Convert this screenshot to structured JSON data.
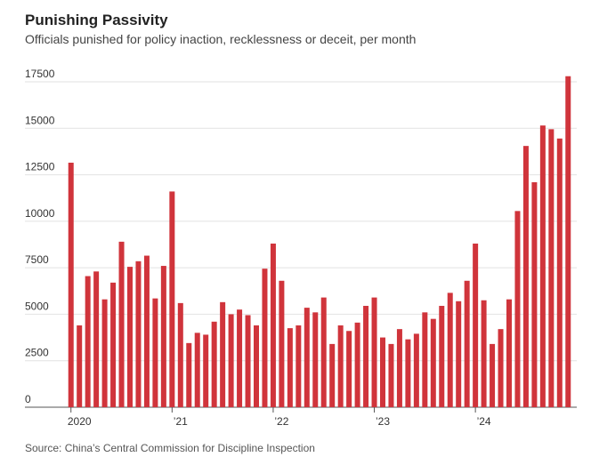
{
  "chart_data": {
    "type": "bar",
    "title": "Punishing Passivity",
    "subtitle": "Officials punished for policy inaction, recklessness or deceit, per month",
    "source": "Source: China’s Central Commission for Discipline Inspection",
    "categories": [
      null,
      "2020",
      null,
      null,
      null,
      null,
      null,
      null,
      null,
      null,
      null,
      null,
      null,
      "’21",
      null,
      null,
      null,
      null,
      null,
      null,
      null,
      null,
      null,
      null,
      null,
      "’22",
      null,
      null,
      null,
      null,
      null,
      null,
      null,
      null,
      null,
      null,
      null,
      "’23",
      null,
      null,
      null,
      null,
      null,
      null,
      null,
      null,
      null,
      null,
      null,
      "’24",
      null,
      null,
      null,
      null,
      null,
      null,
      null,
      null,
      null,
      null
    ],
    "values": [
      13150,
      4400,
      7050,
      7300,
      5800,
      6700,
      8900,
      7550,
      7850,
      8150,
      5850,
      7600,
      11600,
      5600,
      3450,
      4000,
      3900,
      4600,
      5650,
      5000,
      5250,
      4950,
      4400,
      7450,
      8800,
      6800,
      4250,
      4400,
      5350,
      5100,
      5900,
      3400,
      4400,
      4100,
      4550,
      5450,
      5900,
      3750,
      3400,
      4200,
      3650,
      3950,
      5100,
      4750,
      5450,
      6150,
      5700,
      6800,
      8800,
      5750,
      3400,
      4200,
      5800,
      10550,
      14050,
      12100,
      15150,
      14950,
      14450,
      17800
    ],
    "color": "#d0343b",
    "ylim": [
      0,
      17500
    ],
    "yticks": [
      0,
      2500,
      5000,
      7500,
      10000,
      12500,
      15000,
      17500
    ],
    "grid": true
  }
}
